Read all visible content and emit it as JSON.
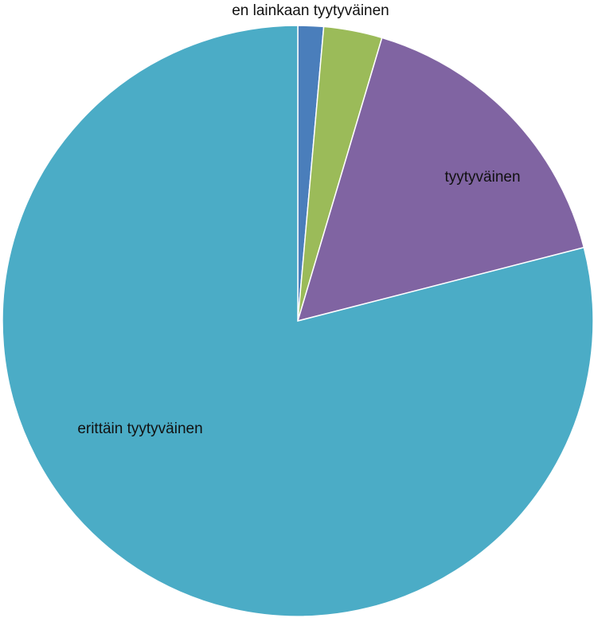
{
  "chart_data": {
    "type": "pie",
    "start_angle_deg": 0,
    "direction": "clockwise",
    "slices": [
      {
        "label": "en lainkaan tyytyväinen",
        "value": 1.4,
        "color": "#4A7EBB",
        "show_label": true
      },
      {
        "label": "",
        "value": 3.2,
        "color": "#9BBB59",
        "show_label": false
      },
      {
        "label": "tyytyväinen",
        "value": 16.4,
        "color": "#8064A2",
        "show_label": true
      },
      {
        "label": "erittäin tyytyväinen",
        "value": 79.0,
        "color": "#4BACC6",
        "show_label": true
      }
    ]
  }
}
